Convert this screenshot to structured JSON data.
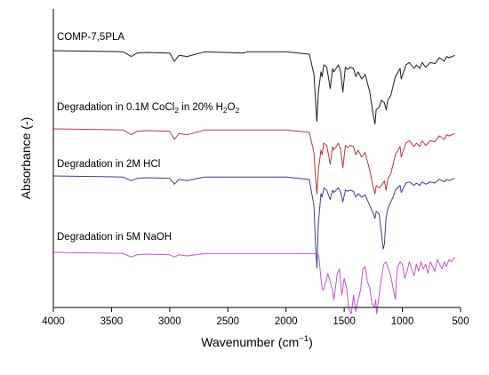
{
  "chart_data": {
    "type": "line",
    "xlabel": "Wavenumber (cm",
    "xlabel_sup": "−1",
    "xlabel_end": ")",
    "ylabel": "Absorbance (-)",
    "xlim": [
      4000,
      500
    ],
    "x_reversed": true,
    "x_ticks": [
      4000,
      3500,
      3000,
      2500,
      2000,
      1500,
      1000,
      500
    ],
    "y_ticks_shown": false,
    "grid": false,
    "legend": "none",
    "series": [
      {
        "name": "COMP-7,5PLA",
        "label_parts": [
          {
            "t": "COMP-7,5PLA"
          }
        ],
        "color": "#1a1a1a",
        "offset": 0.5,
        "x": [
          4000,
          3600,
          3400,
          3330,
          3280,
          3200,
          3000,
          2960,
          2920,
          2850,
          2700,
          2360,
          2340,
          2000,
          1800,
          1760,
          1748,
          1735,
          1722,
          1700,
          1690,
          1675,
          1650,
          1620,
          1600,
          1590,
          1550,
          1530,
          1512,
          1490,
          1470,
          1450,
          1420,
          1400,
          1380,
          1350,
          1320,
          1280,
          1250,
          1235,
          1225,
          1200,
          1180,
          1155,
          1140,
          1125,
          1100,
          1080,
          1060,
          1020,
          1010,
          970,
          940,
          900,
          880,
          850,
          830,
          800,
          780,
          760,
          720,
          700,
          680,
          640,
          620,
          600,
          550
        ],
        "y": [
          0,
          0.5,
          1,
          5,
          2,
          1.5,
          2,
          9,
          4,
          5,
          1,
          2,
          1,
          1,
          3,
          20,
          40,
          60,
          35,
          18,
          22,
          12,
          14,
          32,
          15,
          18,
          12,
          18,
          35,
          14,
          16,
          14,
          15,
          22,
          18,
          24,
          20,
          35,
          55,
          62,
          50,
          48,
          42,
          44,
          50,
          42,
          38,
          30,
          22,
          15,
          24,
          12,
          10,
          15,
          12,
          15,
          10,
          14,
          12,
          10,
          11,
          8,
          6,
          9,
          5,
          6,
          4
        ]
      },
      {
        "name": "Degradation in 0.1M CoCl2 in 20% H2O2",
        "label_parts": [
          {
            "t": "Degradation in 0.1M CoCl"
          },
          {
            "t": "2",
            "sub": true
          },
          {
            "t": " in 20% H"
          },
          {
            "t": "2",
            "sub": true
          },
          {
            "t": "O"
          },
          {
            "t": "2",
            "sub": true
          }
        ],
        "color": "#b33a3a",
        "offset": 0.5,
        "x": [
          4000,
          3600,
          3400,
          3330,
          3280,
          3200,
          3000,
          2960,
          2920,
          2850,
          2700,
          2000,
          1800,
          1760,
          1748,
          1735,
          1722,
          1700,
          1690,
          1675,
          1650,
          1620,
          1600,
          1590,
          1550,
          1530,
          1512,
          1490,
          1470,
          1450,
          1420,
          1400,
          1380,
          1350,
          1320,
          1280,
          1250,
          1235,
          1225,
          1200,
          1180,
          1155,
          1140,
          1125,
          1100,
          1080,
          1060,
          1020,
          1010,
          970,
          940,
          900,
          880,
          850,
          830,
          800,
          780,
          760,
          720,
          700,
          680,
          640,
          620,
          600,
          550
        ],
        "y": [
          0,
          0.5,
          1,
          5,
          2,
          1.5,
          2,
          9,
          4,
          5,
          1,
          1,
          3,
          20,
          40,
          55,
          35,
          18,
          22,
          12,
          14,
          30,
          15,
          18,
          12,
          18,
          33,
          14,
          16,
          14,
          15,
          22,
          18,
          24,
          20,
          35,
          50,
          55,
          48,
          50,
          48,
          44,
          52,
          42,
          38,
          30,
          22,
          15,
          24,
          12,
          10,
          15,
          12,
          15,
          10,
          14,
          12,
          10,
          11,
          8,
          6,
          9,
          5,
          6,
          4
        ]
      },
      {
        "name": "Degradation in 2M HCl",
        "label_parts": [
          {
            "t": "Degradation in 2M HCl"
          }
        ],
        "color": "#3a3f8a",
        "offset": 0.5,
        "x": [
          4000,
          3600,
          3400,
          3330,
          3280,
          3200,
          3000,
          2960,
          2920,
          2850,
          2700,
          2000,
          1800,
          1760,
          1748,
          1735,
          1722,
          1700,
          1690,
          1675,
          1650,
          1620,
          1600,
          1590,
          1550,
          1530,
          1512,
          1490,
          1470,
          1450,
          1420,
          1400,
          1380,
          1350,
          1320,
          1280,
          1250,
          1235,
          1225,
          1200,
          1180,
          1165,
          1155,
          1140,
          1125,
          1100,
          1080,
          1060,
          1020,
          1010,
          970,
          940,
          900,
          880,
          850,
          830,
          800,
          780,
          760,
          720,
          700,
          680,
          640,
          620,
          600,
          550
        ],
        "y": [
          0,
          0.5,
          1,
          4,
          2,
          1.5,
          2,
          7,
          3,
          4,
          1,
          1,
          3,
          25,
          55,
          78,
          40,
          15,
          18,
          10,
          12,
          20,
          12,
          14,
          10,
          14,
          22,
          12,
          13,
          12,
          13,
          18,
          15,
          18,
          16,
          25,
          32,
          36,
          30,
          32,
          48,
          62,
          58,
          35,
          28,
          22,
          18,
          12,
          8,
          14,
          6,
          5,
          8,
          6,
          8,
          5,
          7,
          6,
          5,
          6,
          4,
          3,
          5,
          3,
          4,
          2
        ]
      },
      {
        "name": "Degradation in 5M NaOH",
        "label_parts": [
          {
            "t": "Degradation in 5M NaOH"
          }
        ],
        "color": "#c452c8",
        "offset": 0.5,
        "x": [
          4000,
          3600,
          3400,
          3330,
          3280,
          3200,
          3000,
          2960,
          2920,
          2850,
          2700,
          2000,
          1760,
          1720,
          1700,
          1690,
          1680,
          1660,
          1640,
          1600,
          1590,
          1575,
          1560,
          1540,
          1520,
          1500,
          1480,
          1460,
          1440,
          1430,
          1420,
          1400,
          1380,
          1360,
          1340,
          1320,
          1300,
          1280,
          1260,
          1240,
          1230,
          1220,
          1200,
          1180,
          1160,
          1140,
          1120,
          1100,
          1080,
          1060,
          1050,
          1040,
          1020,
          1000,
          980,
          960,
          940,
          920,
          900,
          880,
          860,
          840,
          820,
          800,
          780,
          760,
          740,
          720,
          700,
          680,
          660,
          640,
          620,
          600,
          580,
          550
        ],
        "y": [
          0,
          0.5,
          1,
          4,
          2,
          1.5,
          2,
          4,
          2,
          3,
          1,
          1,
          1,
          2,
          22,
          30,
          32,
          26,
          18,
          32,
          40,
          30,
          18,
          14,
          36,
          22,
          30,
          48,
          52,
          45,
          36,
          50,
          40,
          32,
          14,
          12,
          25,
          30,
          44,
          46,
          40,
          52,
          36,
          22,
          10,
          8,
          14,
          20,
          30,
          40,
          22,
          12,
          8,
          10,
          22,
          16,
          8,
          14,
          20,
          10,
          16,
          8,
          14,
          10,
          18,
          8,
          12,
          16,
          6,
          10,
          14,
          8,
          12,
          6,
          8,
          4
        ]
      }
    ]
  }
}
